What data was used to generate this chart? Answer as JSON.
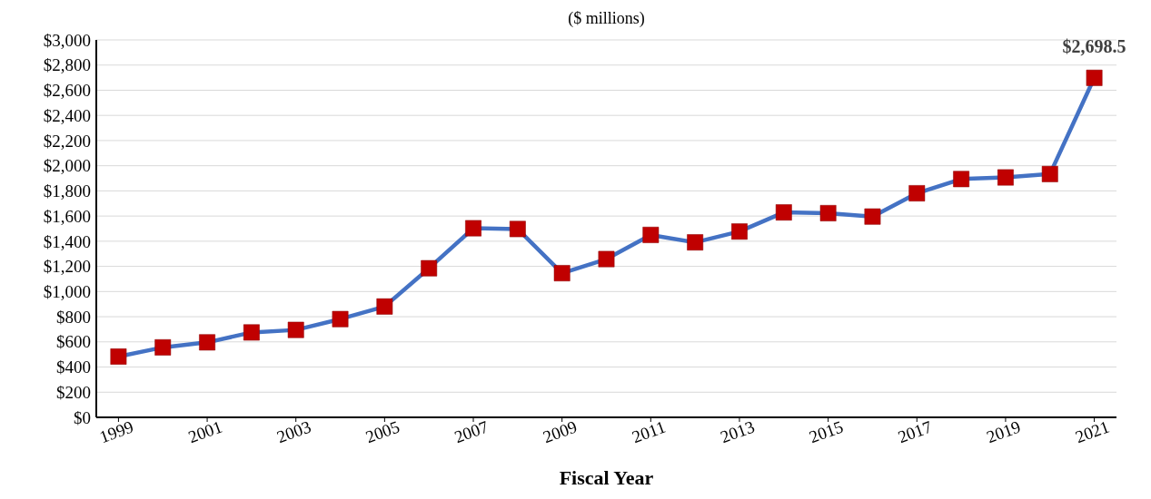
{
  "chart_data": {
    "type": "line",
    "subtitle": "($ millions)",
    "xlabel": "Fiscal Year",
    "x": [
      1999,
      2000,
      2001,
      2002,
      2003,
      2004,
      2005,
      2006,
      2007,
      2008,
      2009,
      2010,
      2011,
      2012,
      2013,
      2014,
      2015,
      2016,
      2017,
      2018,
      2019,
      2020,
      2021
    ],
    "series": [
      {
        "color": "#4472c4",
        "colors": [
          "#c00000",
          "#c00000",
          "#c00000",
          "#c00000",
          "#c00000",
          "#c00000",
          "#c00000",
          "#c00000",
          "#c00000",
          "#c00000",
          "#c00000",
          "#c00000",
          "#c00000",
          "#c00000",
          "#c00000",
          "#c00000",
          "#c00000",
          "#c00000",
          "#c00000",
          "#c00000",
          "#c00000",
          "#c00000",
          "#c00000"
        ],
        "values": [
          483,
          556,
          596,
          675,
          695,
          781,
          881,
          1185,
          1503,
          1497,
          1146,
          1258,
          1450,
          1391,
          1477,
          1629,
          1623,
          1596,
          1781,
          1894,
          1907,
          1934,
          2698.5
        ]
      }
    ],
    "xlim": [
      1998.5,
      2021.5
    ],
    "xticks": [
      1999,
      2001,
      2003,
      2005,
      2007,
      2009,
      2011,
      2013,
      2015,
      2017,
      2019,
      2021
    ],
    "ylim": [
      0,
      3000
    ],
    "yticks": [
      {
        "value": 0,
        "label": "$0"
      },
      {
        "value": 200,
        "label": "$200"
      },
      {
        "value": 400,
        "label": "$400"
      },
      {
        "value": 600,
        "label": "$600"
      },
      {
        "value": 800,
        "label": "$800"
      },
      {
        "value": 1000,
        "label": "$1,000"
      },
      {
        "value": 1200,
        "label": "$1,200"
      },
      {
        "value": 1400,
        "label": "$1,400"
      },
      {
        "value": 1600,
        "label": "$1,600"
      },
      {
        "value": 1800,
        "label": "$1,800"
      },
      {
        "value": 2000,
        "label": "$2,000"
      },
      {
        "value": 2200,
        "label": "$2,200"
      },
      {
        "value": 2400,
        "label": "$2,400"
      },
      {
        "value": 2600,
        "label": "$2,600"
      },
      {
        "value": 2800,
        "label": "$2,800"
      },
      {
        "value": 3000,
        "label": "$3,000"
      }
    ],
    "annotations": [
      {
        "text": "$2,698.5",
        "x": 2021,
        "y": 2698.5
      }
    ],
    "grid": "y",
    "marker": "square",
    "line_style": "solid"
  }
}
